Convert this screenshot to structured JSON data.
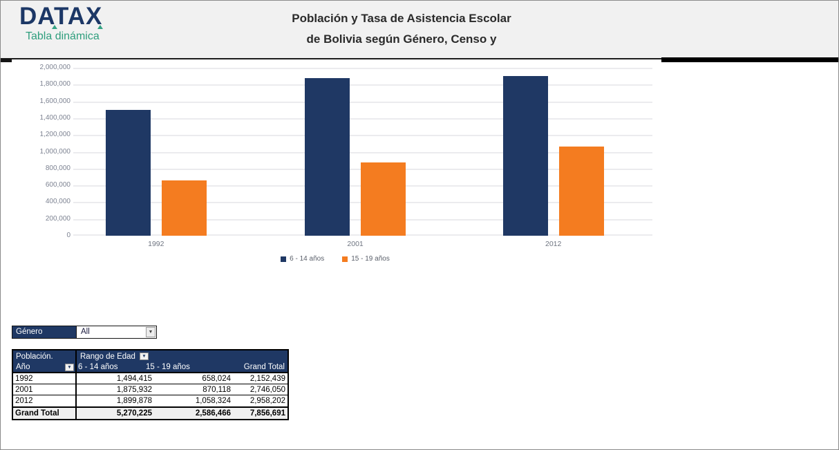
{
  "header": {
    "logo": "DATAX",
    "logo_subtitle": "Tabla dinámica",
    "title_line1": "Población y Tasa de Asistencia Escolar",
    "title_line2": "de Bolivia según Género, Censo y"
  },
  "colors": {
    "navy": "#1f3864",
    "orange": "#f47c20",
    "teal": "#2f9e7d",
    "header_bg": "#f1f1f1",
    "gridline": "#ebebee",
    "grand_total_bg": "#efefef"
  },
  "chart_data": {
    "type": "bar",
    "title": "Población y Tasa de Asistencia Escolar de Bolivia según Género, Censo y",
    "categories": [
      "1992",
      "2001",
      "2012"
    ],
    "series": [
      {
        "name": "6 - 14 años",
        "color": "#1f3864",
        "values": [
          1494415,
          1875932,
          1899878
        ]
      },
      {
        "name": "15 - 19 años",
        "color": "#f47c20",
        "values": [
          658024,
          870118,
          1058324
        ]
      }
    ],
    "xlabel": "",
    "ylabel": "",
    "ylim": [
      0,
      2000000
    ],
    "ytick_step": 200000,
    "ytick_labels": [
      "2,000,000",
      "1,800,000",
      "1,600,000",
      "1,400,000",
      "1,200,000",
      "1,000,000",
      "800,000",
      "600,000",
      "400,000",
      "200,000",
      "0"
    ],
    "grid": true,
    "legend_position": "bottom"
  },
  "filter": {
    "label": "Género",
    "value": "All"
  },
  "pivot": {
    "row_header_line1": "Población.",
    "row_header_line2": "Año",
    "col_group_label": "Rango de Edad",
    "col_headers": [
      "6 - 14 años",
      "15 - 19 años",
      "Grand Total"
    ],
    "rows": [
      {
        "label": "1992",
        "values": [
          "1,494,415",
          "658,024",
          "2,152,439"
        ]
      },
      {
        "label": "2001",
        "values": [
          "1,875,932",
          "870,118",
          "2,746,050"
        ]
      },
      {
        "label": "2012",
        "values": [
          "1,899,878",
          "1,058,324",
          "2,958,202"
        ]
      }
    ],
    "grand_total": {
      "label": "Grand Total",
      "values": [
        "5,270,225",
        "2,586,466",
        "7,856,691"
      ]
    }
  },
  "icons": {
    "dropdown_arrow": "▼"
  }
}
